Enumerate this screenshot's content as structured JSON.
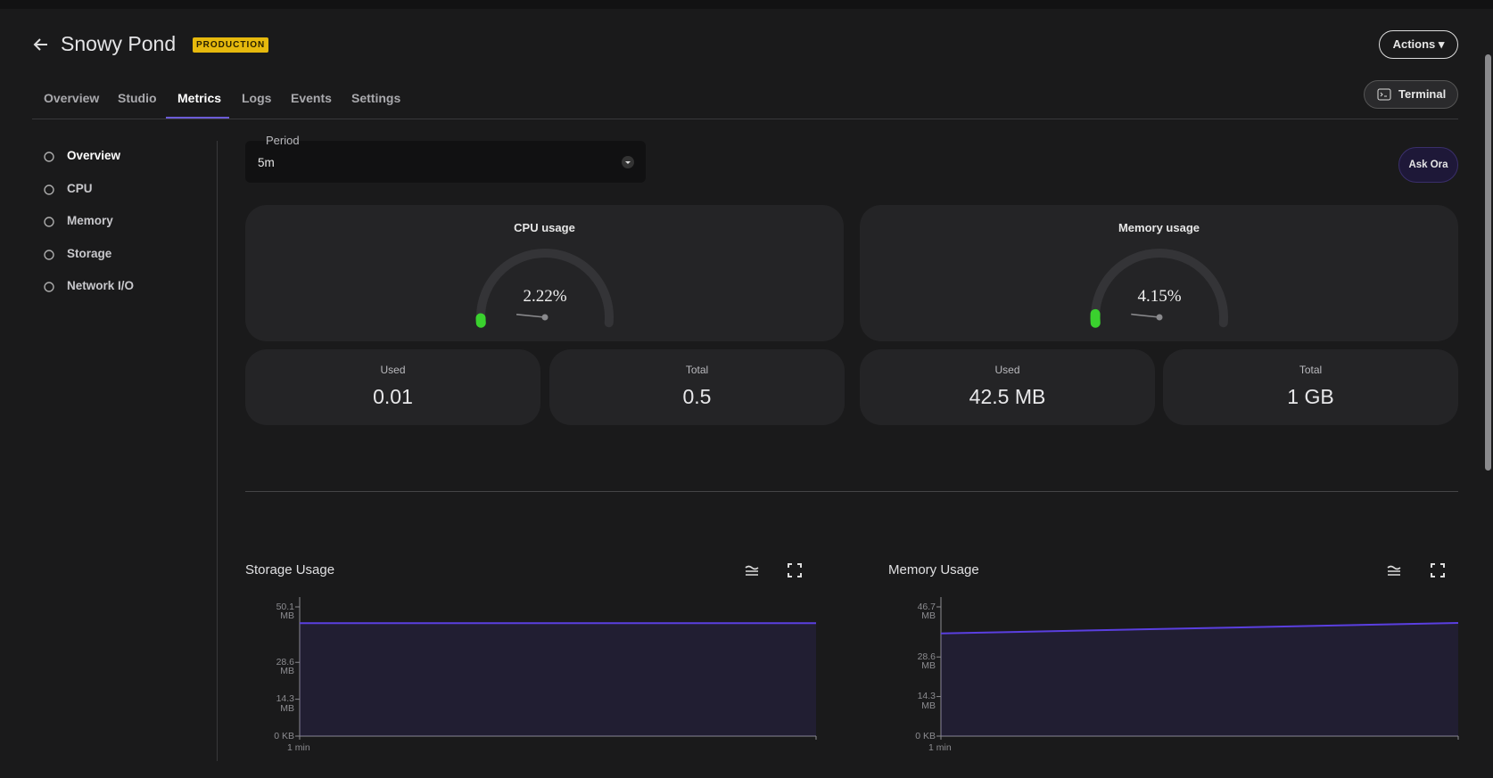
{
  "header": {
    "title": "Snowy Pond",
    "badge": "PRODUCTION",
    "actions": "Actions",
    "terminal": "Terminal"
  },
  "tabs": [
    "Overview",
    "Studio",
    "Metrics",
    "Logs",
    "Events",
    "Settings"
  ],
  "sidebar": [
    "Overview",
    "CPU",
    "Memory",
    "Storage",
    "Network I/O"
  ],
  "period": {
    "label": "Period",
    "value": "5m"
  },
  "ask": "Ask Ora",
  "gauges": [
    {
      "type": "gauge",
      "title": "CPU usage",
      "value": 2.22,
      "value_label": "2.22%",
      "ylim": [
        0,
        100
      ],
      "color": "#3ad12e"
    },
    {
      "type": "gauge",
      "title": "Memory usage",
      "value": 4.15,
      "value_label": "4.15%",
      "ylim": [
        0,
        100
      ],
      "color": "#3ad12e"
    }
  ],
  "stats": [
    {
      "label": "Used",
      "value": "0.01"
    },
    {
      "label": "Total",
      "value": "0.5"
    },
    {
      "label": "Used",
      "value": "42.5 MB"
    },
    {
      "label": "Total",
      "value": "1 GB"
    }
  ],
  "chart_data": [
    {
      "type": "line",
      "title": "Storage Usage",
      "categories": [
        "1 min",
        null
      ],
      "values": [
        43.8,
        43.8
      ],
      "color": "#5a3fe0",
      "ylim": [
        0,
        50.1
      ],
      "yticks": [
        {
          "value": 0,
          "label": "0 KB"
        },
        {
          "value": 14.3,
          "label": "14.3 MB"
        },
        {
          "value": 28.6,
          "label": "28.6 MB"
        },
        {
          "value": 50.1,
          "label": "50.1 MB"
        }
      ]
    },
    {
      "type": "line",
      "title": "Memory Usage",
      "categories": [
        "1 min",
        null
      ],
      "values": [
        37.1,
        40.9
      ],
      "color": "#5a3fe0",
      "ylim": [
        0,
        46.7
      ],
      "yticks": [
        {
          "value": 0,
          "label": "0 KB"
        },
        {
          "value": 14.3,
          "label": "14.3 MB"
        },
        {
          "value": 28.6,
          "label": "28.6 MB"
        },
        {
          "value": 46.7,
          "label": "46.7 MB"
        }
      ]
    }
  ]
}
